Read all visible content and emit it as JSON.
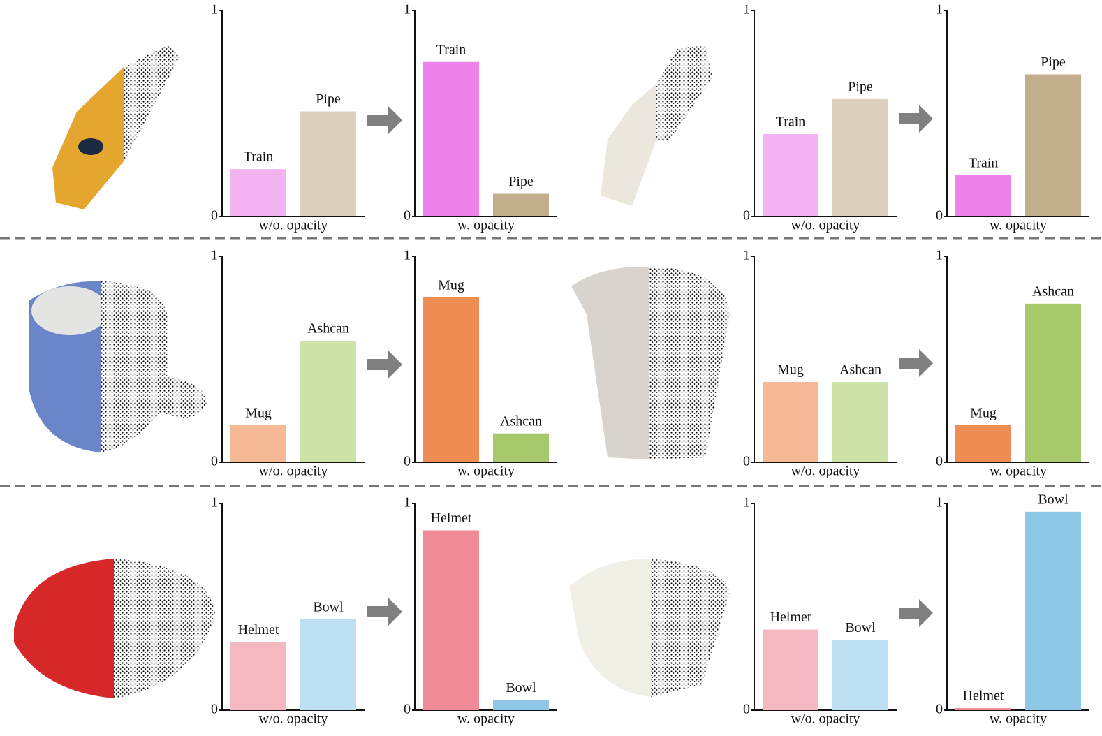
{
  "chart_data": [
    {
      "type": "bar",
      "categories": [
        "Train",
        "Pipe"
      ],
      "values": [
        0.23,
        0.51
      ],
      "colors": [
        "#f2b3f0",
        "#dcd0bd"
      ],
      "ylim": [
        0,
        1
      ],
      "yticks": [
        0,
        1
      ],
      "xlabel": "w/o. opacity"
    },
    {
      "type": "bar",
      "categories": [
        "Train",
        "Pipe"
      ],
      "values": [
        0.75,
        0.11
      ],
      "colors": [
        "#ee82ec",
        "#c2ae8c"
      ],
      "ylim": [
        0,
        1
      ],
      "yticks": [
        0,
        1
      ],
      "xlabel": "w. opacity"
    },
    {
      "type": "bar",
      "categories": [
        "Train",
        "Pipe"
      ],
      "values": [
        0.4,
        0.57
      ],
      "colors": [
        "#f2b3f0",
        "#dcd0bd"
      ],
      "ylim": [
        0,
        1
      ],
      "yticks": [
        0,
        1
      ],
      "xlabel": "w/o. opacity"
    },
    {
      "type": "bar",
      "categories": [
        "Train",
        "Pipe"
      ],
      "values": [
        0.2,
        0.69
      ],
      "colors": [
        "#ee82ec",
        "#c2ae8c"
      ],
      "ylim": [
        0,
        1
      ],
      "yticks": [
        0,
        1
      ],
      "xlabel": "w. opacity"
    },
    {
      "type": "bar",
      "categories": [
        "Mug",
        "Ashcan"
      ],
      "values": [
        0.18,
        0.59
      ],
      "colors": [
        "#f5b995",
        "#cde3a8"
      ],
      "ylim": [
        0,
        1
      ],
      "yticks": [
        0,
        1
      ],
      "xlabel": "w/o. opacity"
    },
    {
      "type": "bar",
      "categories": [
        "Mug",
        "Ashcan"
      ],
      "values": [
        0.8,
        0.14
      ],
      "colors": [
        "#ef8c54",
        "#a5c96b"
      ],
      "ylim": [
        0,
        1
      ],
      "yticks": [
        0,
        1
      ],
      "xlabel": "w. opacity"
    },
    {
      "type": "bar",
      "categories": [
        "Mug",
        "Ashcan"
      ],
      "values": [
        0.39,
        0.39
      ],
      "colors": [
        "#f5b995",
        "#cde3a8"
      ],
      "ylim": [
        0,
        1
      ],
      "yticks": [
        0,
        1
      ],
      "xlabel": "w/o. opacity"
    },
    {
      "type": "bar",
      "categories": [
        "Mug",
        "Ashcan"
      ],
      "values": [
        0.18,
        0.77
      ],
      "colors": [
        "#ef8c54",
        "#a5c96b"
      ],
      "ylim": [
        0,
        1
      ],
      "yticks": [
        0,
        1
      ],
      "xlabel": "w. opacity"
    },
    {
      "type": "bar",
      "categories": [
        "Helmet",
        "Bowl"
      ],
      "values": [
        0.33,
        0.44
      ],
      "colors": [
        "#f6b8c0",
        "#bde0f2"
      ],
      "ylim": [
        0,
        1
      ],
      "yticks": [
        0,
        1
      ],
      "xlabel": "w/o. opacity"
    },
    {
      "type": "bar",
      "categories": [
        "Helmet",
        "Bowl"
      ],
      "values": [
        0.87,
        0.05
      ],
      "colors": [
        "#f08a96",
        "#8ec8e6"
      ],
      "ylim": [
        0,
        1
      ],
      "yticks": [
        0,
        1
      ],
      "xlabel": "w. opacity"
    },
    {
      "type": "bar",
      "categories": [
        "Helmet",
        "Bowl"
      ],
      "values": [
        0.39,
        0.34
      ],
      "colors": [
        "#f6b8c0",
        "#bde0f2"
      ],
      "ylim": [
        0,
        1
      ],
      "yticks": [
        0,
        1
      ],
      "xlabel": "w/o. opacity"
    },
    {
      "type": "bar",
      "categories": [
        "Helmet",
        "Bowl"
      ],
      "values": [
        0.01,
        0.96
      ],
      "colors": [
        "#f08a96",
        "#8ec8e6"
      ],
      "ylim": [
        0,
        1
      ],
      "yticks": [
        0,
        1
      ],
      "xlabel": "w. opacity"
    }
  ]
}
